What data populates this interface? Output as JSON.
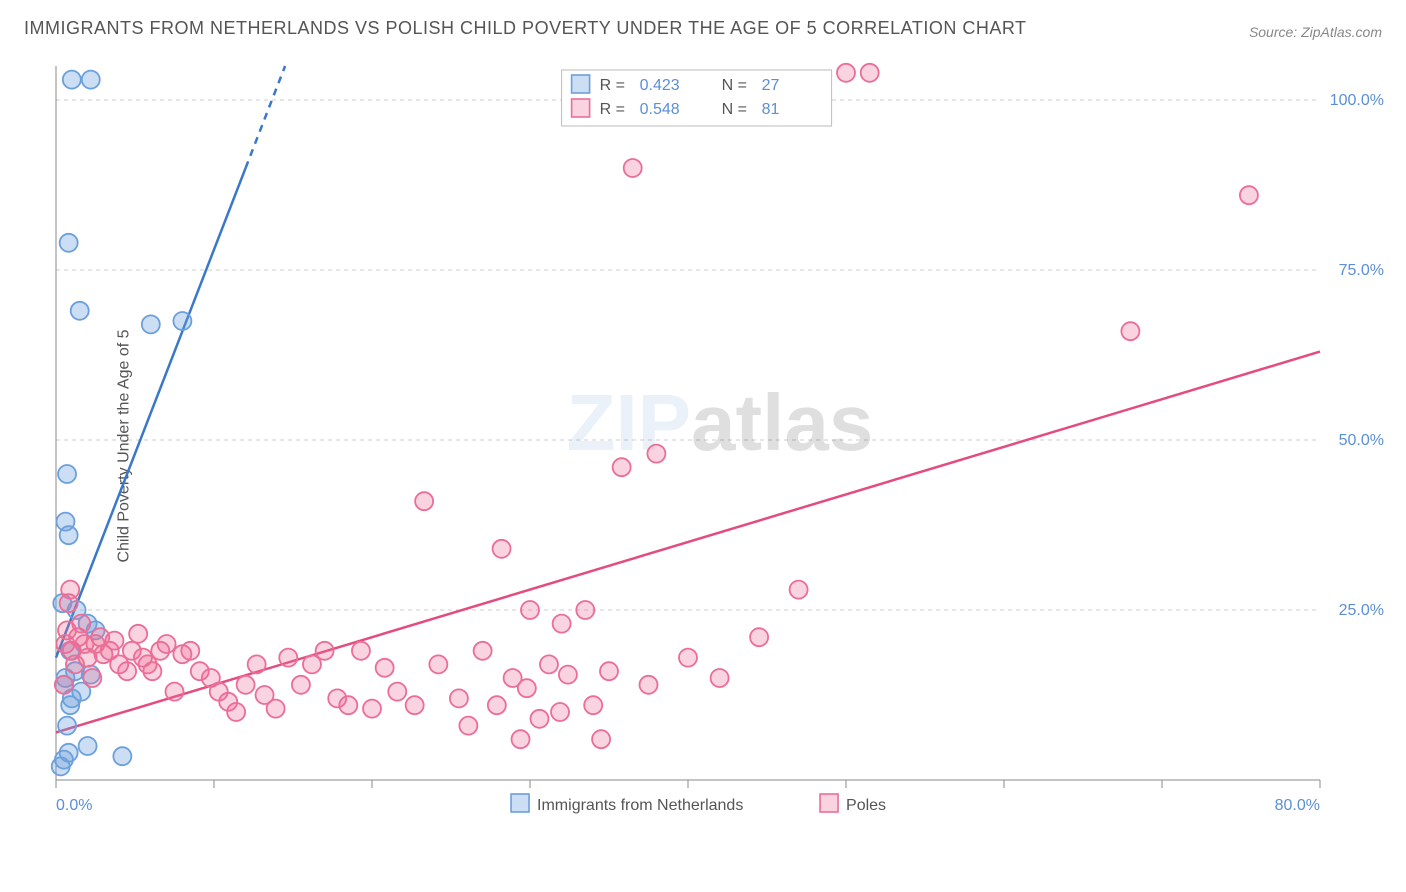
{
  "title": "IMMIGRANTS FROM NETHERLANDS VS POLISH CHILD POVERTY UNDER THE AGE OF 5 CORRELATION CHART",
  "source": "Source: ZipAtlas.com",
  "ylabel": "Child Poverty Under the Age of 5",
  "watermark_left": "ZIP",
  "watermark_right": "atlas",
  "chart": {
    "type": "scatter",
    "xlim": [
      0,
      80
    ],
    "ylim": [
      0,
      105
    ],
    "xtick_labels": [
      {
        "v": 0,
        "label": "0.0%"
      },
      {
        "v": 80,
        "label": "80.0%"
      }
    ],
    "ytick_labels": [
      {
        "v": 25,
        "label": "25.0%"
      },
      {
        "v": 50,
        "label": "50.0%"
      },
      {
        "v": 75,
        "label": "75.0%"
      },
      {
        "v": 100,
        "label": "100.0%"
      }
    ],
    "y_gridlines": [
      25,
      50,
      75,
      100
    ],
    "x_gridticks": [
      0,
      10,
      20,
      30,
      40,
      50,
      60,
      70,
      80
    ],
    "background_color": "#ffffff",
    "grid_color": "#cccccc",
    "axis_color": "#888888",
    "marker_radius": 9,
    "marker_stroke_width": 1.8,
    "line_width": 2.5,
    "series": [
      {
        "name": "Immigrants from Netherlands",
        "color_fill": "rgba(108,160,220,0.35)",
        "color_stroke": "#6ca0dc",
        "line_color": "#3a78c9",
        "R": "0.423",
        "N": "27",
        "trend": {
          "x1": 0,
          "y1": 18,
          "x2": 14.5,
          "y2": 105
        },
        "trend_dash_start_x": 12,
        "points": [
          [
            0.3,
            2
          ],
          [
            0.5,
            3
          ],
          [
            4.2,
            3.5
          ],
          [
            0.8,
            4
          ],
          [
            2.0,
            5
          ],
          [
            0.7,
            8
          ],
          [
            0.9,
            11
          ],
          [
            1.0,
            12
          ],
          [
            1.6,
            13
          ],
          [
            0.5,
            14
          ],
          [
            0.6,
            15
          ],
          [
            2.2,
            15.5
          ],
          [
            1.2,
            16
          ],
          [
            0.9,
            19
          ],
          [
            2.5,
            22
          ],
          [
            2.0,
            23
          ],
          [
            1.3,
            25
          ],
          [
            0.4,
            26
          ],
          [
            0.8,
            36
          ],
          [
            0.6,
            38
          ],
          [
            0.7,
            45
          ],
          [
            6.0,
            67
          ],
          [
            8.0,
            67.5
          ],
          [
            1.5,
            69
          ],
          [
            0.8,
            79
          ],
          [
            1.0,
            103
          ],
          [
            2.2,
            103
          ]
        ]
      },
      {
        "name": "Poles",
        "color_fill": "rgba(235,110,150,0.30)",
        "color_stroke": "#eb6e96",
        "line_color": "#e44c7e",
        "R": "0.548",
        "N": "81",
        "trend": {
          "x1": 0,
          "y1": 7,
          "x2": 80,
          "y2": 63
        },
        "points": [
          [
            0.5,
            14
          ],
          [
            0.6,
            20
          ],
          [
            0.7,
            22
          ],
          [
            0.8,
            26
          ],
          [
            0.9,
            28
          ],
          [
            1.0,
            19
          ],
          [
            1.2,
            17
          ],
          [
            1.4,
            21
          ],
          [
            1.6,
            23
          ],
          [
            1.8,
            20
          ],
          [
            2.0,
            18
          ],
          [
            2.3,
            15
          ],
          [
            2.5,
            20
          ],
          [
            2.8,
            21
          ],
          [
            3.0,
            18.5
          ],
          [
            3.4,
            19
          ],
          [
            3.7,
            20.5
          ],
          [
            4.0,
            17
          ],
          [
            4.5,
            16
          ],
          [
            4.8,
            19
          ],
          [
            5.2,
            21.5
          ],
          [
            5.5,
            18
          ],
          [
            5.8,
            17
          ],
          [
            6.1,
            16
          ],
          [
            6.6,
            19
          ],
          [
            7.0,
            20
          ],
          [
            7.5,
            13
          ],
          [
            8.0,
            18.5
          ],
          [
            8.5,
            19
          ],
          [
            9.1,
            16
          ],
          [
            9.8,
            15
          ],
          [
            10.3,
            13
          ],
          [
            10.9,
            11.5
          ],
          [
            11.4,
            10
          ],
          [
            12.0,
            14
          ],
          [
            12.7,
            17
          ],
          [
            13.2,
            12.5
          ],
          [
            13.9,
            10.5
          ],
          [
            14.7,
            18
          ],
          [
            15.5,
            14
          ],
          [
            16.2,
            17
          ],
          [
            17.0,
            19
          ],
          [
            17.8,
            12
          ],
          [
            18.5,
            11
          ],
          [
            19.3,
            19
          ],
          [
            20.0,
            10.5
          ],
          [
            20.8,
            16.5
          ],
          [
            21.6,
            13
          ],
          [
            22.7,
            11
          ],
          [
            23.3,
            41
          ],
          [
            24.2,
            17
          ],
          [
            25.5,
            12
          ],
          [
            26.1,
            8
          ],
          [
            27.0,
            19
          ],
          [
            27.9,
            11
          ],
          [
            28.2,
            34
          ],
          [
            28.9,
            15
          ],
          [
            29.4,
            6
          ],
          [
            29.8,
            13.5
          ],
          [
            30.0,
            25
          ],
          [
            30.6,
            9
          ],
          [
            31.2,
            17
          ],
          [
            31.9,
            10
          ],
          [
            32.0,
            23
          ],
          [
            32.4,
            15.5
          ],
          [
            33.5,
            25
          ],
          [
            34.0,
            11
          ],
          [
            34.5,
            6
          ],
          [
            35.0,
            16
          ],
          [
            35.8,
            46
          ],
          [
            36.5,
            90
          ],
          [
            37.5,
            14
          ],
          [
            38.0,
            48
          ],
          [
            40.0,
            18
          ],
          [
            42.0,
            15
          ],
          [
            44.5,
            21
          ],
          [
            47.0,
            28
          ],
          [
            50.0,
            104
          ],
          [
            51.5,
            104
          ],
          [
            68.0,
            66
          ],
          [
            75.5,
            86
          ]
        ]
      }
    ],
    "legend_x_series": [
      {
        "label": "Immigrants from Netherlands",
        "swatch_fill": "rgba(108,160,220,0.35)",
        "swatch_stroke": "#6ca0dc"
      },
      {
        "label": "Poles",
        "swatch_fill": "rgba(235,110,150,0.30)",
        "swatch_stroke": "#eb6e96"
      }
    ]
  }
}
